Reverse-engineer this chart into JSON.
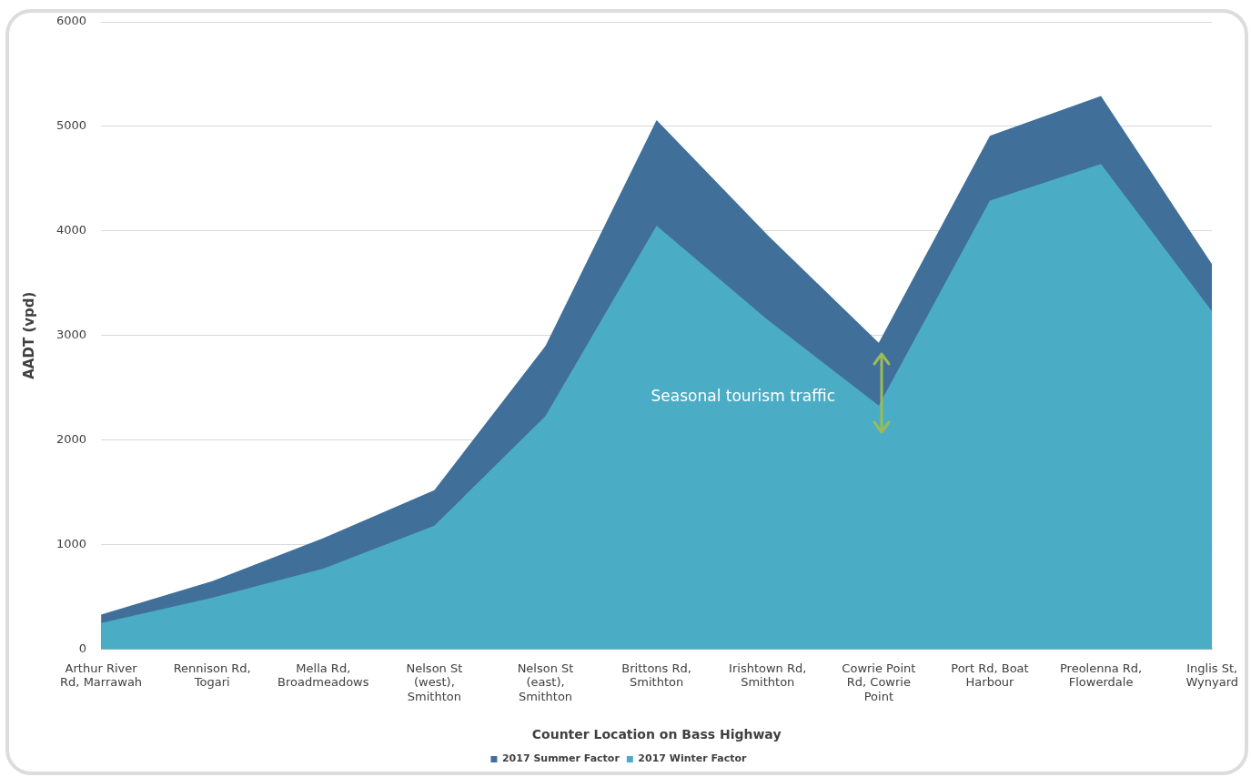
{
  "chart_data": {
    "type": "area",
    "xlabel": "Counter Location on Bass Highway",
    "ylabel": "AADT (vpd)",
    "categories": [
      "Arthur River Rd, Marrawah",
      "Rennison Rd, Togari",
      "Mella Rd, Broadmeadows",
      "Nelson St (west), Smithton",
      "Nelson St (east), Smithton",
      "Brittons Rd, Smithton",
      "Irishtown Rd, Smithton",
      "Cowrie Point Rd, Cowrie Point",
      "Port Rd, Boat Harbour",
      "Preolenna Rd, Flowerdale",
      "Inglis St, Wynyard"
    ],
    "series": [
      {
        "name": "2017 Summer Factor",
        "color": "#406f9a",
        "values": [
          330,
          650,
          1060,
          1520,
          2900,
          5060,
          3960,
          2930,
          4910,
          5290,
          3680
        ]
      },
      {
        "name": "2017 Winter Factor",
        "color": "#4bacc6",
        "values": [
          250,
          490,
          770,
          1180,
          2230,
          4050,
          3150,
          2330,
          4290,
          4640,
          3230
        ]
      }
    ],
    "ylim": [
      0,
      6000
    ],
    "yticks": [
      0,
      1000,
      2000,
      3000,
      4000,
      5000,
      6000
    ],
    "grid": "y",
    "legend": "bottom",
    "annotations": [
      "Seasonal tourism traffic"
    ]
  }
}
